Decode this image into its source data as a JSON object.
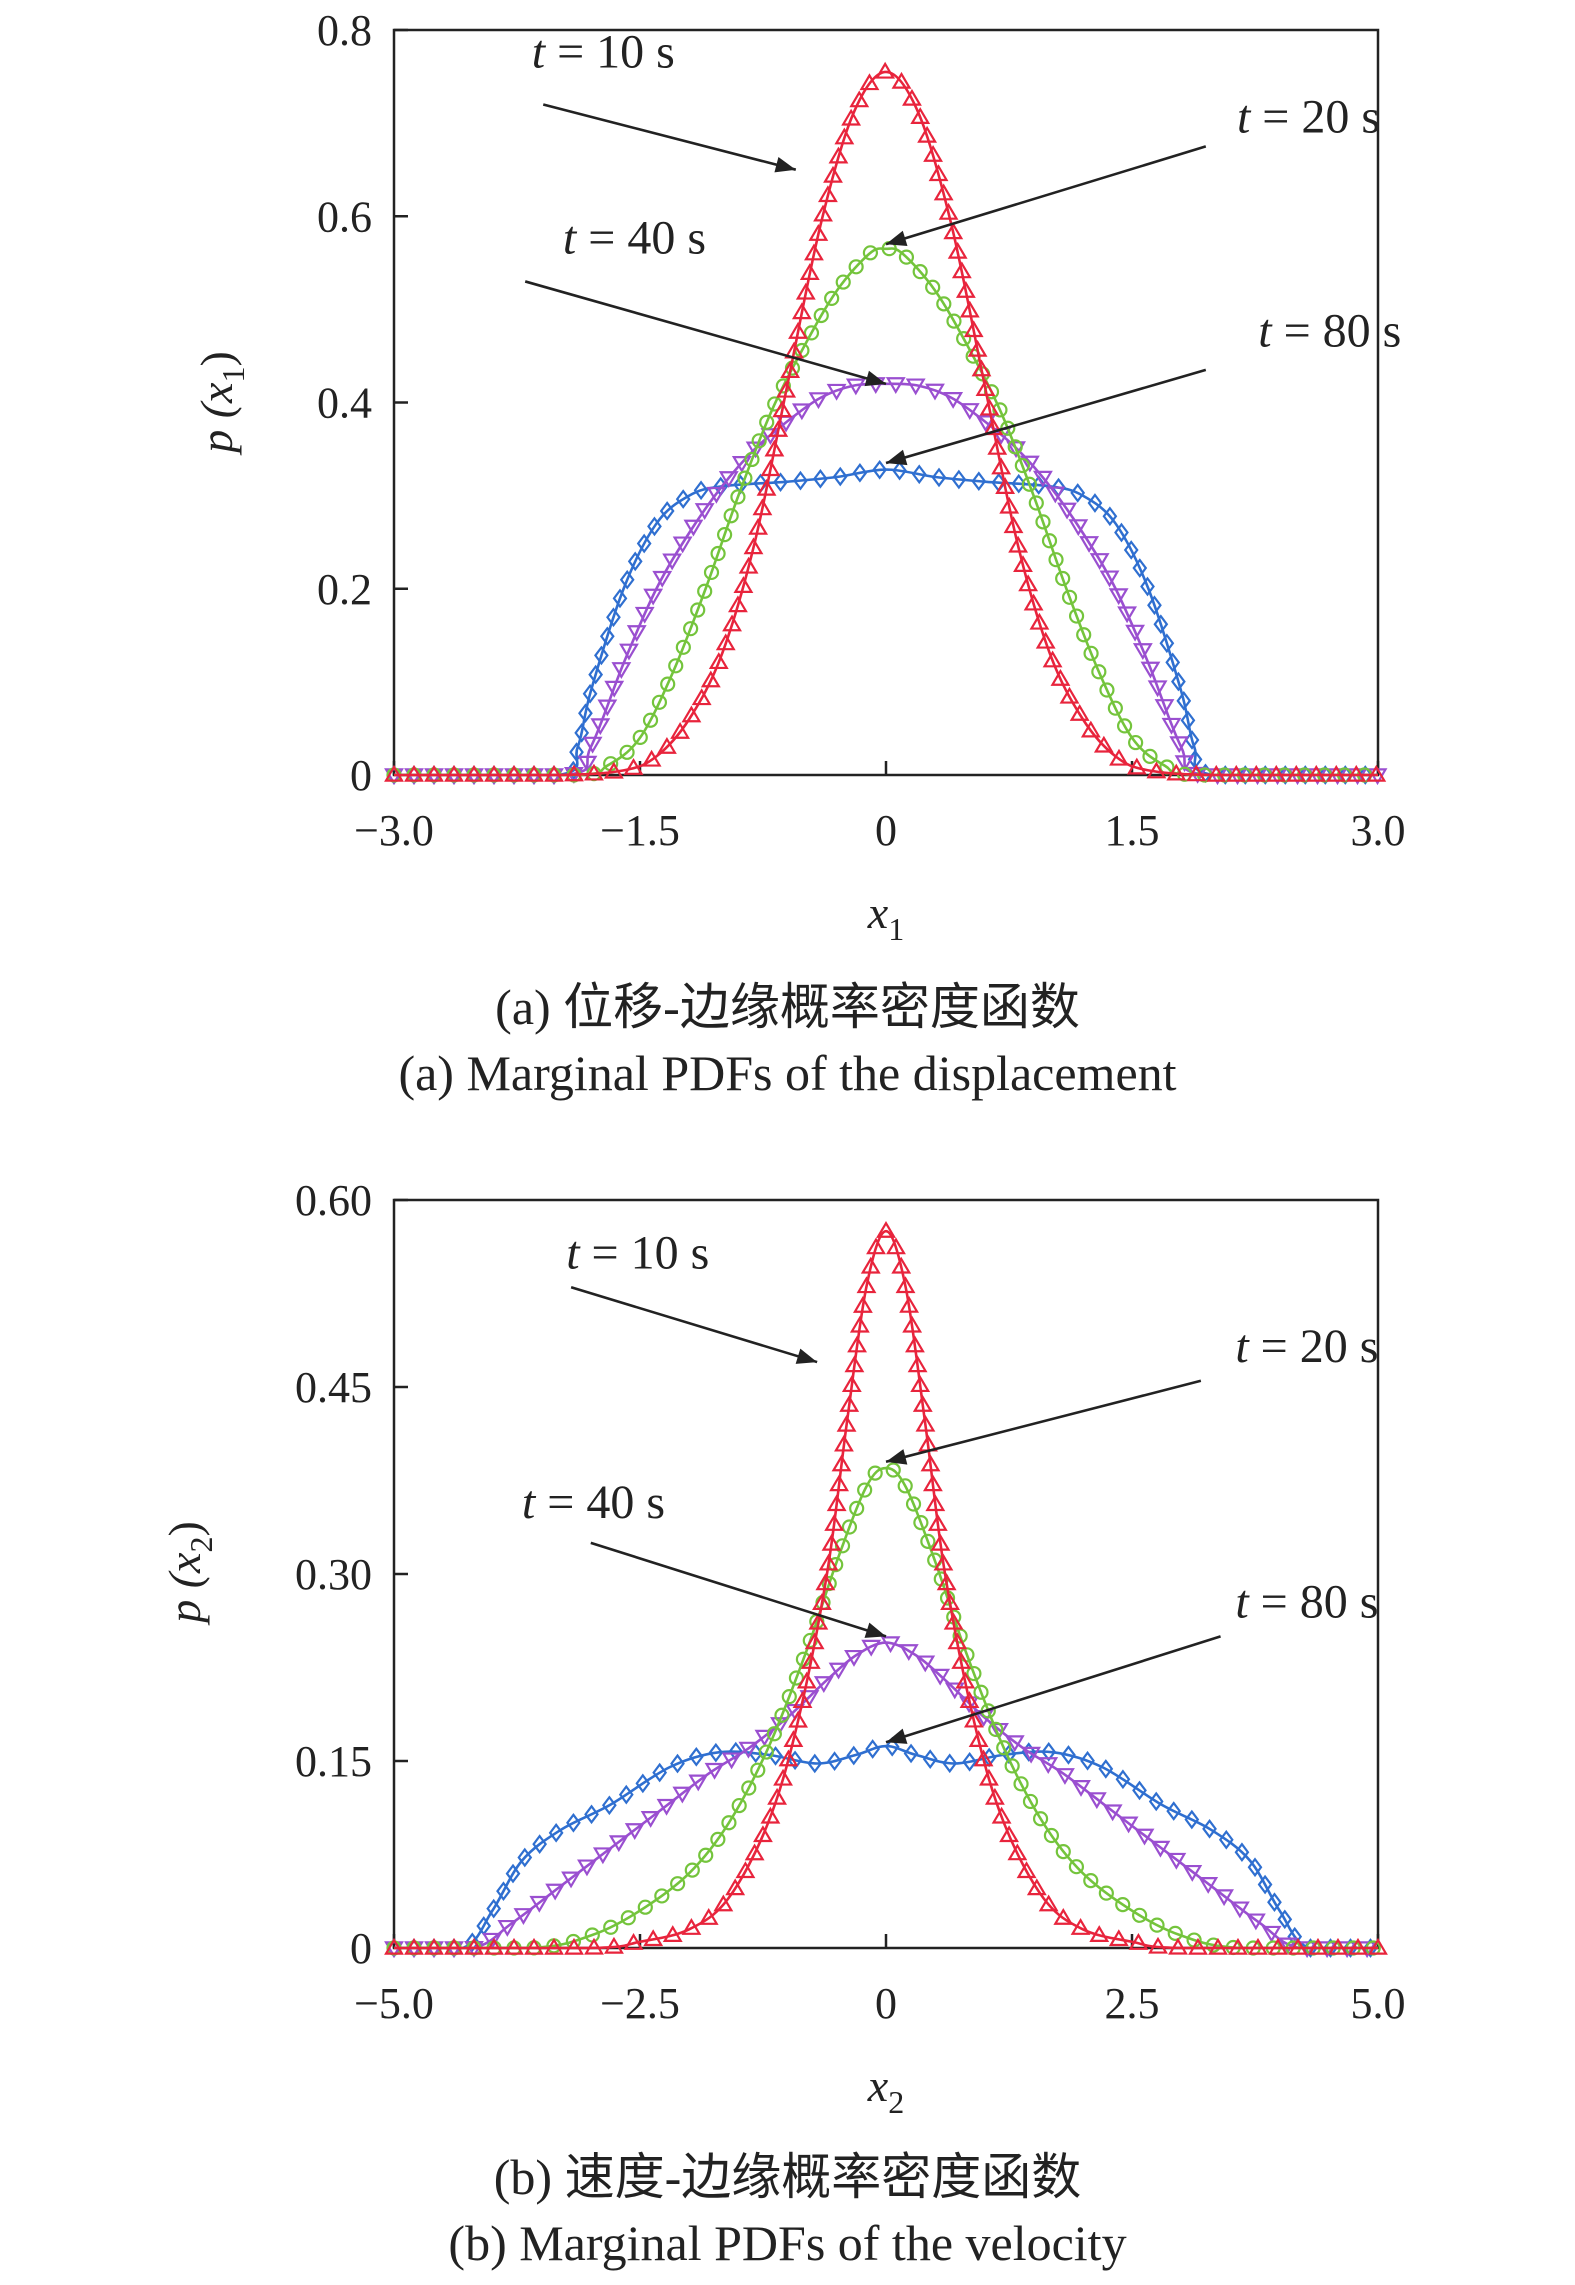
{
  "colors": {
    "t10": "#e8243c",
    "t20": "#74c43c",
    "t40": "#9a4fd0",
    "t80": "#2f6fd0",
    "axis": "#222222"
  },
  "chart_data": [
    {
      "id": "a",
      "type": "line",
      "caption_cn": "(a) 位移-边缘概率密度函数",
      "caption_en": "(a) Marginal PDFs of the displacement",
      "xlabel": "x",
      "xlabel_sub": "1",
      "ylabel": "p (x",
      "ylabel_sub": "1",
      "ylabel_close": ")",
      "xlim": [
        -3.0,
        3.0
      ],
      "ylim": [
        0,
        0.8
      ],
      "xticks": [
        -3.0,
        -1.5,
        0,
        1.5,
        3.0
      ],
      "xtick_labels": [
        "−3.0",
        "−1.5",
        "0",
        "1.5",
        "3.0"
      ],
      "yticks": [
        0,
        0.2,
        0.4,
        0.6,
        0.8
      ],
      "ytick_labels": [
        "0",
        "0.2",
        "0.4",
        "0.6",
        "0.8"
      ],
      "series": [
        {
          "key": "t10",
          "label": "t = 10 s",
          "marker": "triangle-up",
          "x": [
            -3.0,
            -2.0,
            -1.6,
            -1.4,
            -1.2,
            -1.0,
            -0.8,
            -0.6,
            -0.4,
            -0.2,
            0,
            0.2,
            0.4,
            0.6,
            0.8,
            1.0,
            1.2,
            1.4,
            1.6,
            2.0,
            3.0
          ],
          "y": [
            0,
            0,
            0.005,
            0.02,
            0.06,
            0.13,
            0.25,
            0.42,
            0.59,
            0.71,
            0.755,
            0.71,
            0.59,
            0.42,
            0.25,
            0.13,
            0.06,
            0.02,
            0.005,
            0,
            0
          ]
        },
        {
          "key": "t20",
          "label": "t = 20 s",
          "marker": "circle",
          "x": [
            -3.0,
            -1.9,
            -1.7,
            -1.5,
            -1.3,
            -1.1,
            -0.9,
            -0.7,
            -0.5,
            -0.3,
            -0.1,
            0,
            0.1,
            0.3,
            0.5,
            0.7,
            0.9,
            1.1,
            1.3,
            1.5,
            1.7,
            1.9,
            3.0
          ],
          "y": [
            0,
            0,
            0.01,
            0.04,
            0.11,
            0.2,
            0.3,
            0.39,
            0.46,
            0.52,
            0.56,
            0.565,
            0.56,
            0.52,
            0.46,
            0.39,
            0.3,
            0.2,
            0.11,
            0.04,
            0.01,
            0,
            0
          ]
        },
        {
          "key": "t40",
          "label": "t = 40 s",
          "marker": "triangle-down",
          "x": [
            -3.0,
            -1.95,
            -1.8,
            -1.6,
            -1.4,
            -1.2,
            -1.0,
            -0.8,
            -0.6,
            -0.4,
            -0.2,
            0,
            0.2,
            0.4,
            0.6,
            0.8,
            1.0,
            1.2,
            1.4,
            1.6,
            1.8,
            1.95,
            3.0
          ],
          "y": [
            0,
            0,
            0.03,
            0.12,
            0.2,
            0.26,
            0.31,
            0.35,
            0.38,
            0.405,
            0.418,
            0.42,
            0.418,
            0.405,
            0.38,
            0.35,
            0.31,
            0.26,
            0.2,
            0.12,
            0.03,
            0,
            0
          ]
        },
        {
          "key": "t80",
          "label": "t = 80 s",
          "marker": "diamond",
          "x": [
            -3.0,
            -2.0,
            -1.88,
            -1.8,
            -1.6,
            -1.4,
            -1.2,
            -1.0,
            -0.6,
            -0.3,
            0,
            0.3,
            0.6,
            1.0,
            1.2,
            1.4,
            1.6,
            1.8,
            1.88,
            2.0,
            3.0
          ],
          "y": [
            0,
            0,
            0.03,
            0.09,
            0.2,
            0.27,
            0.3,
            0.31,
            0.315,
            0.32,
            0.328,
            0.32,
            0.315,
            0.31,
            0.3,
            0.27,
            0.2,
            0.09,
            0.03,
            0,
            0
          ]
        }
      ],
      "annotations": [
        {
          "series": "t10",
          "text": "t = 10 s",
          "x": -2.16,
          "y": 0.76,
          "ax": -2.09,
          "ay": 0.72,
          "px": -0.55,
          "py": 0.65
        },
        {
          "series": "t20",
          "text": "t = 20 s",
          "x": 2.14,
          "y": 0.69,
          "ax": 1.95,
          "ay": 0.675,
          "px": 0.0,
          "py": 0.57
        },
        {
          "series": "t40",
          "text": "t = 40 s",
          "x": -1.97,
          "y": 0.56,
          "ax": -2.2,
          "ay": 0.53,
          "px": 0.0,
          "py": 0.42
        },
        {
          "series": "t80",
          "text": "t = 80 s",
          "x": 2.27,
          "y": 0.46,
          "ax": 1.95,
          "ay": 0.435,
          "px": 0.0,
          "py": 0.335
        }
      ]
    },
    {
      "id": "b",
      "type": "line",
      "caption_cn": "(b) 速度-边缘概率密度函数",
      "caption_en": "(b) Marginal PDFs of the velocity",
      "xlabel": "x",
      "xlabel_sub": "2",
      "ylabel": "p (x",
      "ylabel_sub": "2",
      "ylabel_close": ")",
      "xlim": [
        -5.0,
        5.0
      ],
      "ylim": [
        0,
        0.6
      ],
      "xticks": [
        -5.0,
        -2.5,
        0,
        2.5,
        5.0
      ],
      "xtick_labels": [
        "−5.0",
        "−2.5",
        "0",
        "2.5",
        "5.0"
      ],
      "yticks": [
        0,
        0.15,
        0.3,
        0.45,
        0.6
      ],
      "ytick_labels": [
        "0",
        "0.15",
        "0.30",
        "0.45",
        "0.60"
      ],
      "series": [
        {
          "key": "t10",
          "label": "t = 10 s",
          "marker": "triangle-up",
          "x": [
            -5.0,
            -3.0,
            -2.5,
            -2.0,
            -1.6,
            -1.2,
            -0.9,
            -0.6,
            -0.4,
            -0.2,
            0,
            0.2,
            0.4,
            0.6,
            0.9,
            1.2,
            1.6,
            2.0,
            2.5,
            3.0,
            5.0
          ],
          "y": [
            0,
            0,
            0.005,
            0.015,
            0.04,
            0.1,
            0.18,
            0.3,
            0.42,
            0.53,
            0.575,
            0.53,
            0.42,
            0.3,
            0.18,
            0.1,
            0.04,
            0.015,
            0.005,
            0,
            0
          ]
        },
        {
          "key": "t20",
          "label": "t = 20 s",
          "marker": "circle",
          "x": [
            -5.0,
            -3.6,
            -3.0,
            -2.5,
            -2.0,
            -1.6,
            -1.2,
            -0.8,
            -0.5,
            -0.2,
            0,
            0.2,
            0.5,
            0.8,
            1.2,
            1.6,
            2.0,
            2.5,
            3.0,
            3.6,
            5.0
          ],
          "y": [
            0,
            0,
            0.01,
            0.03,
            0.06,
            0.1,
            0.16,
            0.24,
            0.31,
            0.37,
            0.385,
            0.37,
            0.31,
            0.24,
            0.16,
            0.1,
            0.06,
            0.03,
            0.01,
            0,
            0
          ]
        },
        {
          "key": "t40",
          "label": "t = 40 s",
          "marker": "triangle-down",
          "x": [
            -5.0,
            -4.2,
            -3.8,
            -3.3,
            -2.8,
            -2.3,
            -1.8,
            -1.4,
            -1.0,
            -0.6,
            -0.3,
            0,
            0.3,
            0.6,
            1.0,
            1.4,
            1.8,
            2.3,
            2.8,
            3.3,
            3.8,
            4.2,
            5.0
          ],
          "y": [
            0,
            0,
            0.02,
            0.05,
            0.08,
            0.11,
            0.14,
            0.16,
            0.185,
            0.215,
            0.235,
            0.245,
            0.235,
            0.215,
            0.185,
            0.16,
            0.14,
            0.11,
            0.08,
            0.05,
            0.02,
            0,
            0
          ]
        },
        {
          "key": "t80",
          "label": "t = 80 s",
          "marker": "diamond",
          "x": [
            -5.0,
            -4.3,
            -4.0,
            -3.7,
            -3.3,
            -2.8,
            -2.2,
            -1.7,
            -1.2,
            -0.7,
            -0.3,
            0,
            0.3,
            0.7,
            1.2,
            1.7,
            2.2,
            2.8,
            3.3,
            3.7,
            4.0,
            4.3,
            5.0
          ],
          "y": [
            0,
            0,
            0.03,
            0.07,
            0.095,
            0.115,
            0.145,
            0.157,
            0.155,
            0.148,
            0.155,
            0.162,
            0.155,
            0.148,
            0.155,
            0.157,
            0.145,
            0.115,
            0.095,
            0.07,
            0.03,
            0,
            0
          ]
        }
      ],
      "annotations": [
        {
          "series": "t10",
          "text": "t = 10 s",
          "x": -3.25,
          "y": 0.545,
          "ax": -3.2,
          "ay": 0.53,
          "px": -0.7,
          "py": 0.47
        },
        {
          "series": "t20",
          "text": "t = 20 s",
          "x": 3.55,
          "y": 0.47,
          "ax": 3.2,
          "ay": 0.455,
          "px": 0.0,
          "py": 0.39
        },
        {
          "series": "t40",
          "text": "t = 40 s",
          "x": -3.7,
          "y": 0.345,
          "ax": -3.0,
          "ay": 0.325,
          "px": 0.0,
          "py": 0.25
        },
        {
          "series": "t80",
          "text": "t = 80 s",
          "x": 3.55,
          "y": 0.265,
          "ax": 3.4,
          "ay": 0.25,
          "px": 0.0,
          "py": 0.165
        }
      ]
    }
  ]
}
